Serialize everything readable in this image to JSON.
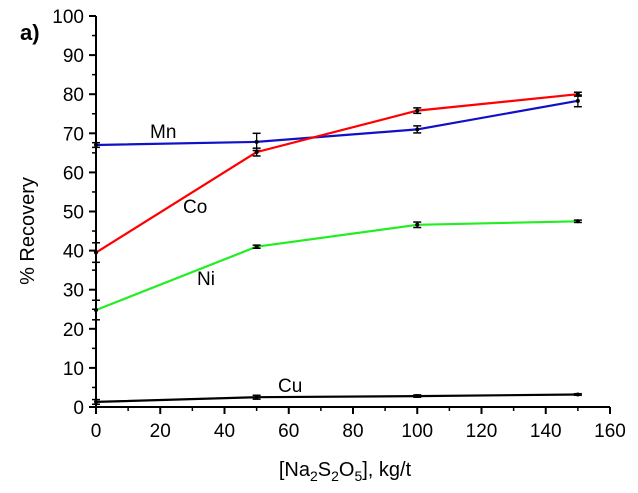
{
  "chart_data": {
    "type": "line",
    "panel_label": "a)",
    "title": "",
    "xlabel": "[Na2S2O5], kg/t",
    "xlabel_parts": {
      "pre": "[Na",
      "sub1": "2",
      "mid1": "S",
      "sub2": "2",
      "mid2": "O",
      "sub3": "5",
      "post": "], kg/t"
    },
    "ylabel": "% Recovery",
    "xlim": [
      0,
      160
    ],
    "ylim": [
      0,
      100
    ],
    "xticks": [
      0,
      20,
      40,
      60,
      80,
      100,
      120,
      140,
      160
    ],
    "yticks": [
      0,
      10,
      20,
      30,
      40,
      50,
      60,
      70,
      80,
      90,
      100
    ],
    "x": [
      0,
      50,
      100,
      150
    ],
    "series": [
      {
        "name": "Mn",
        "color": "#1010c8",
        "values": [
          67,
          67.8,
          71,
          78.3
        ],
        "errors": [
          0.6,
          2.2,
          0.9,
          1.5
        ]
      },
      {
        "name": "Co",
        "color": "#ff0000",
        "values": [
          39.5,
          65.2,
          75.8,
          80
        ],
        "errors": [
          2.5,
          1.0,
          0.7,
          0.5
        ]
      },
      {
        "name": "Ni",
        "color": "#22ee22",
        "values": [
          24.8,
          41,
          46.6,
          47.5
        ],
        "errors": [
          2.5,
          0.4,
          0.7,
          0.3
        ]
      },
      {
        "name": "Cu",
        "color": "#000000",
        "values": [
          1.3,
          2.5,
          2.8,
          3.2
        ],
        "errors": [
          0.6,
          0.5,
          0.3,
          0.2
        ]
      }
    ]
  }
}
